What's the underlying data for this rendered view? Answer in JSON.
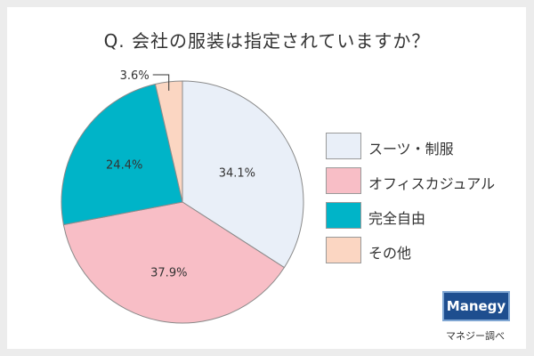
{
  "chart_data": {
    "type": "pie",
    "title": "Q. 会社の服装は指定されていますか？",
    "slices": [
      {
        "label": "スーツ・制服",
        "value": 34.1,
        "display": "34.1%",
        "color": "#e9eff8"
      },
      {
        "label": "オフィスカジュアル",
        "value": 37.9,
        "display": "37.9%",
        "color": "#f8bec6"
      },
      {
        "label": "完全自由",
        "value": 24.4,
        "display": "24.4%",
        "color": "#00b4c8"
      },
      {
        "label": "その他",
        "value": 3.6,
        "display": "3.6%",
        "color": "#fbd6c2"
      }
    ],
    "start": "top",
    "direction": "clockwise",
    "legend_position": "right"
  },
  "brand": {
    "logo_text": "Manegy",
    "credit": "マネジー調べ",
    "color": "#1e4e8f"
  }
}
